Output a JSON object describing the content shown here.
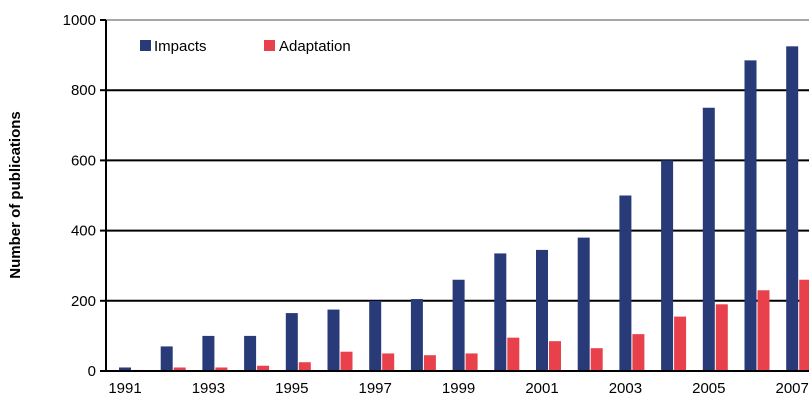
{
  "chart_data": {
    "type": "bar",
    "categories": [
      "1991",
      "1992",
      "1993",
      "1994",
      "1995",
      "1996",
      "1997",
      "1998",
      "1999",
      "2000",
      "2001",
      "2002",
      "2003",
      "2004",
      "2005",
      "2006",
      "2007"
    ],
    "x_tick_labels": [
      "1991",
      "1993",
      "1995",
      "1997",
      "1999",
      "2001",
      "2003",
      "2005",
      "2007"
    ],
    "series": [
      {
        "name": "Impacts",
        "color": "#283a78",
        "values": [
          10,
          70,
          100,
          100,
          165,
          175,
          200,
          205,
          260,
          335,
          345,
          380,
          500,
          600,
          750,
          885,
          925
        ]
      },
      {
        "name": "Adaptation",
        "color": "#e8414c",
        "values": [
          3,
          10,
          10,
          15,
          25,
          55,
          50,
          45,
          50,
          95,
          85,
          65,
          105,
          155,
          190,
          230,
          260
        ]
      }
    ],
    "ylabel": "Number of publications",
    "xlabel": "",
    "title": "",
    "ylim": [
      0,
      1000
    ],
    "y_ticks": [
      "0",
      "200",
      "400",
      "600",
      "800",
      "1000"
    ],
    "grid": "horizontal",
    "legend_position": "top-left"
  }
}
